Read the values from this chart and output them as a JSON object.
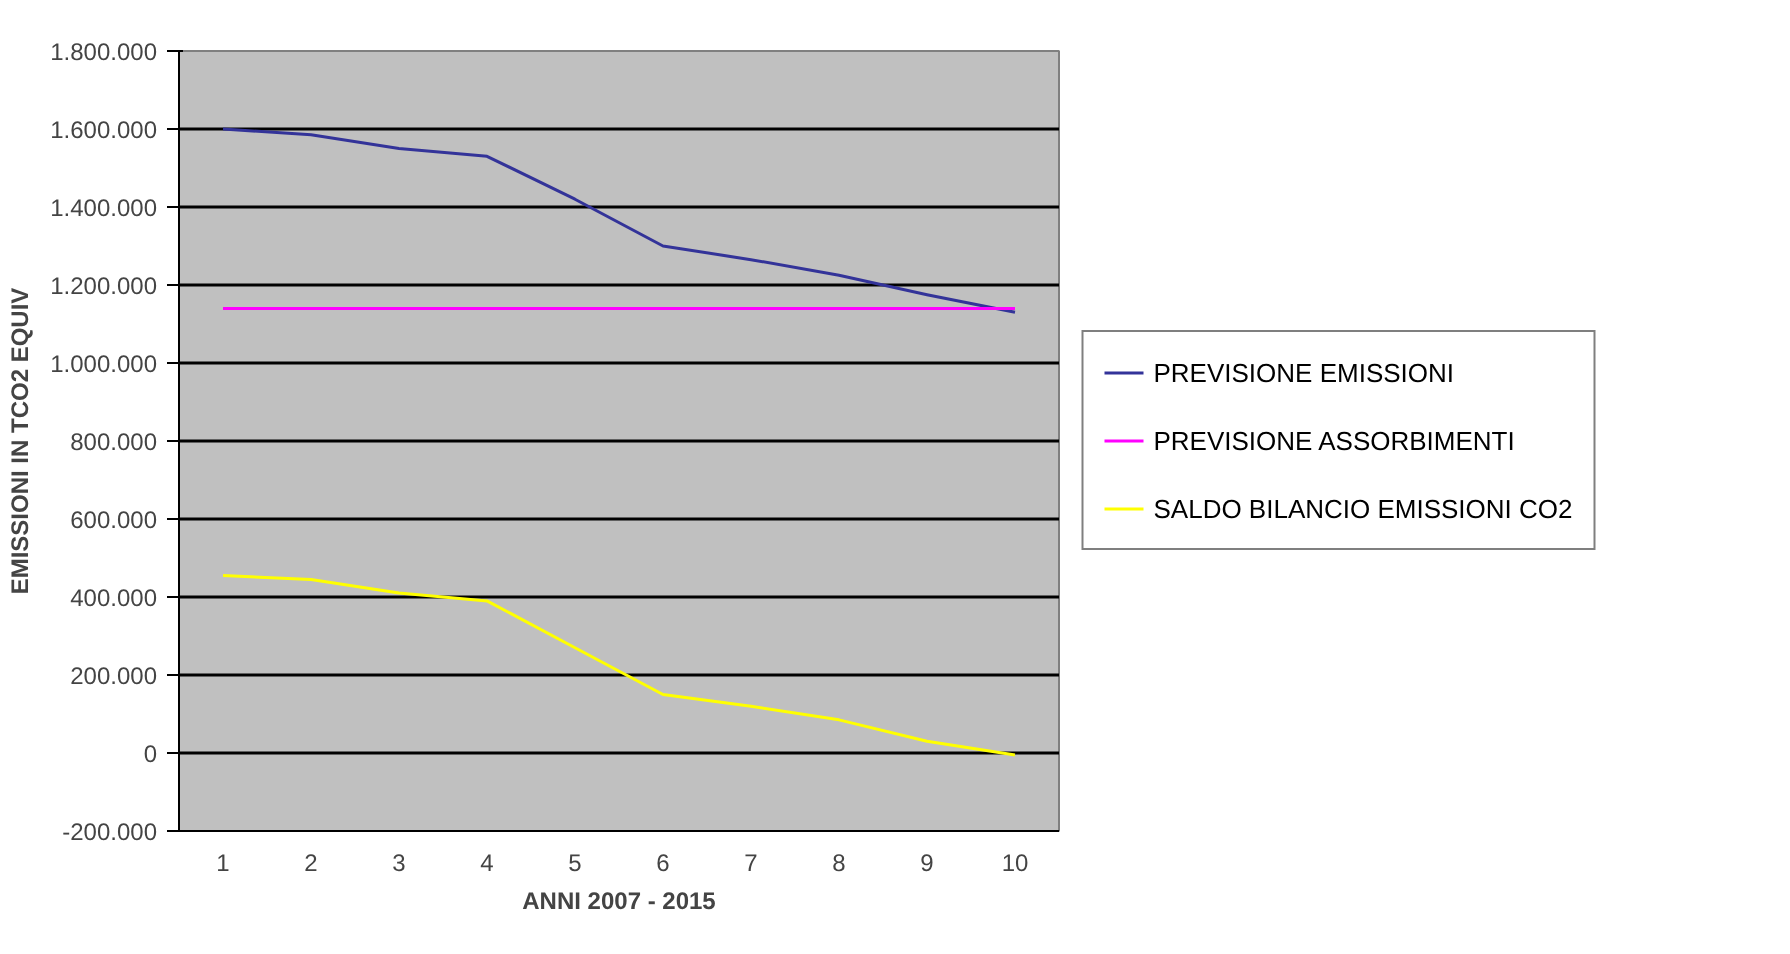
{
  "chart_data": {
    "type": "line",
    "xlabel": "ANNI 2007 - 2015",
    "ylabel": "EMISSIONI IN TCO2 EQUIV",
    "categories": [
      "1",
      "2",
      "3",
      "4",
      "5",
      "6",
      "7",
      "8",
      "9",
      "10"
    ],
    "series": [
      {
        "name": "PREVISIONE EMISSIONI",
        "color": "#333399",
        "values": [
          1600000,
          1585000,
          1550000,
          1530000,
          1420000,
          1300000,
          1265000,
          1225000,
          1175000,
          1130000
        ]
      },
      {
        "name": "PREVISIONE ASSORBIMENTI",
        "color": "#ff00ff",
        "values": [
          1140000,
          1140000,
          1140000,
          1140000,
          1140000,
          1140000,
          1140000,
          1140000,
          1140000,
          1140000
        ]
      },
      {
        "name": "SALDO BILANCIO EMISSIONI CO2",
        "color": "#ffff00",
        "values": [
          455000,
          445000,
          410000,
          390000,
          270000,
          150000,
          120000,
          85000,
          30000,
          -5000
        ]
      }
    ],
    "ylim": [
      -200000,
      1800000
    ],
    "yticks": [
      {
        "value": -200000,
        "label": "-200.000"
      },
      {
        "value": 0,
        "label": "0"
      },
      {
        "value": 200000,
        "label": "200.000"
      },
      {
        "value": 400000,
        "label": "400.000"
      },
      {
        "value": 600000,
        "label": "600.000"
      },
      {
        "value": 800000,
        "label": "800.000"
      },
      {
        "value": 1000000,
        "label": "1.000.000"
      },
      {
        "value": 1200000,
        "label": "1.200.000"
      },
      {
        "value": 1400000,
        "label": "1.400.000"
      },
      {
        "value": 1600000,
        "label": "1.600.000"
      },
      {
        "value": 1800000,
        "label": "1.800.000"
      }
    ],
    "grid": "y",
    "legend": "right",
    "marker": "none",
    "line_style": "solid"
  }
}
